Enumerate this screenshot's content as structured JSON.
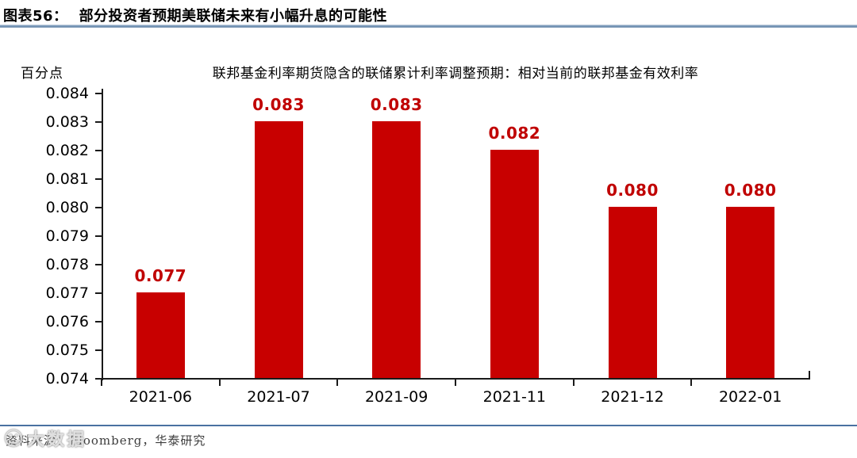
{
  "header": {
    "label": "图表56：",
    "title": "部分投资者预期美联储未来有小幅升息的可能性"
  },
  "chart_data": {
    "type": "bar",
    "title": "联邦基金利率期货隐含的联储累计利率调整预期：相对当前的联邦基金有效利率",
    "unit_label": "百分点",
    "categories": [
      "2021-06",
      "2021-07",
      "2021-09",
      "2021-11",
      "2021-12",
      "2022-01"
    ],
    "values": [
      0.077,
      0.083,
      0.083,
      0.082,
      0.08,
      0.08
    ],
    "value_labels": [
      "0.077",
      "0.083",
      "0.083",
      "0.082",
      "0.080",
      "0.080"
    ],
    "ylim": [
      0.074,
      0.084
    ],
    "y_ticks": [
      "0.084",
      "0.083",
      "0.082",
      "0.081",
      "0.080",
      "0.079",
      "0.078",
      "0.077",
      "0.076",
      "0.075",
      "0.074"
    ],
    "xlabel": "",
    "ylabel": "百分点",
    "grid": false,
    "legend": "none",
    "bar_color": "#C80000",
    "value_label_color": "#C00000"
  },
  "footer": {
    "source": "资料来源：Bloomberg，华泰研究",
    "watermark_text": "大数据"
  },
  "icons": {
    "smiley": "☺"
  }
}
